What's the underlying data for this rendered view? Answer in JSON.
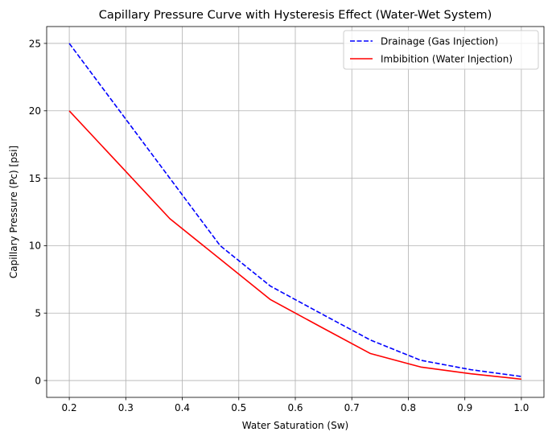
{
  "chart_data": {
    "type": "line",
    "title": "Capillary Pressure Curve with Hysteresis Effect (Water-Wet System)",
    "xlabel": "Water Saturation (Sw)",
    "ylabel": "Capillary Pressure (Pc) [psi]",
    "xlim": [
      0.16,
      1.04
    ],
    "ylim": [
      -1.25,
      26.25
    ],
    "xticks": [
      0.2,
      0.3,
      0.4,
      0.5,
      0.6,
      0.7,
      0.8,
      0.9,
      1.0
    ],
    "xtick_labels": [
      "0.2",
      "0.3",
      "0.4",
      "0.5",
      "0.6",
      "0.7",
      "0.8",
      "0.9",
      "1.0"
    ],
    "yticks": [
      0,
      5,
      10,
      15,
      20,
      25
    ],
    "ytick_labels": [
      "0",
      "5",
      "10",
      "15",
      "20",
      "25"
    ],
    "grid": true,
    "legend_position": "top-right",
    "x": [
      0.2,
      0.289,
      0.378,
      0.467,
      0.556,
      0.644,
      0.733,
      0.822,
      0.911,
      1.0
    ],
    "series": [
      {
        "name": "Drainage (Gas Injection)",
        "color": "#0000ff",
        "style": "dashed",
        "values": [
          25,
          20,
          15,
          10,
          7,
          5,
          3,
          1.5,
          0.8,
          0.3
        ]
      },
      {
        "name": "Imbibition (Water Injection)",
        "color": "#ff0000",
        "style": "solid",
        "values": [
          20,
          16,
          12,
          9,
          6,
          4,
          2,
          1,
          0.5,
          0.1
        ]
      }
    ]
  }
}
